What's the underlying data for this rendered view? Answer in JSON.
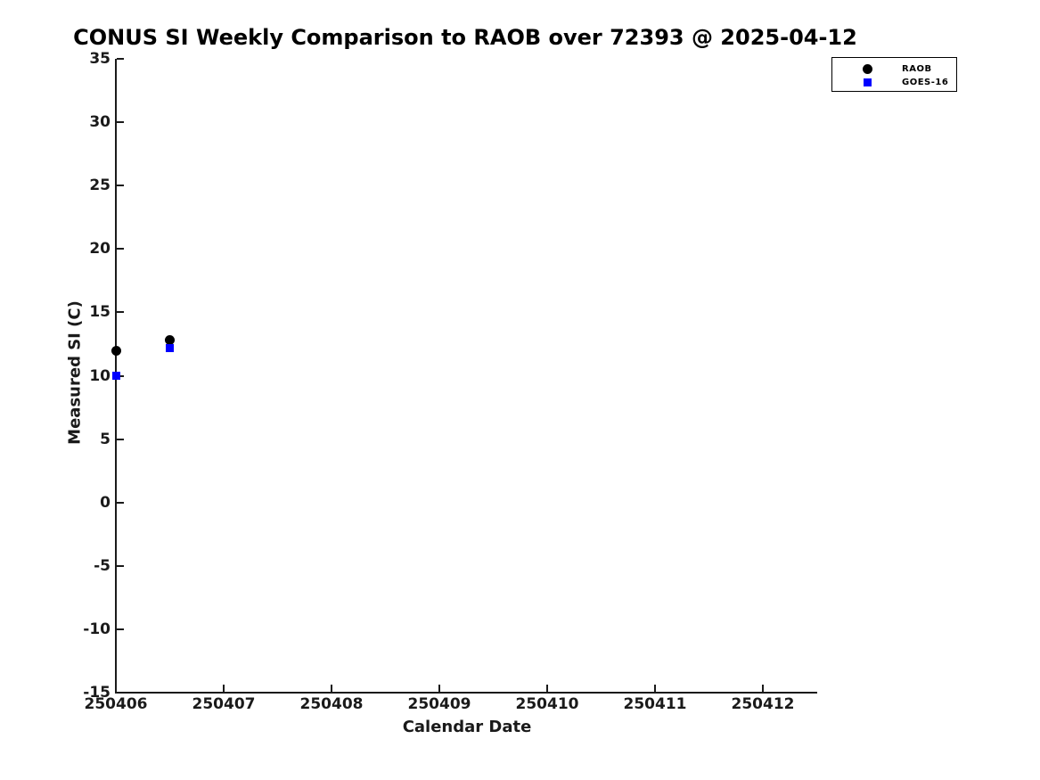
{
  "chart_data": {
    "type": "scatter",
    "title": "CONUS SI Weekly Comparison to RAOB over 72393 @ 2025-04-12",
    "xlabel": "Calendar Date",
    "ylabel": "Measured SI (C)",
    "xlim": [
      250406,
      250412.5
    ],
    "ylim": [
      -15,
      35
    ],
    "x_tick_labels": [
      "250406",
      "250407",
      "250408",
      "250409",
      "250410",
      "250411",
      "250412"
    ],
    "y_tick_labels": [
      "35",
      "30",
      "25",
      "20",
      "15",
      "10",
      "5",
      "0",
      "-5",
      "-10",
      "-15"
    ],
    "grid": false,
    "legend_position": "outside-top-right",
    "colors": {
      "raob": "#000000",
      "goes16": "#0000ff",
      "axis": "#1a1a1a"
    },
    "series": [
      {
        "name": "RAOB",
        "marker": "circle",
        "color": "#000000",
        "marker_size": 11,
        "points": [
          {
            "x": 250406.0,
            "y": 12.0
          },
          {
            "x": 250406.5,
            "y": 12.8
          }
        ]
      },
      {
        "name": "GOES-16",
        "marker": "square",
        "color": "#0000ff",
        "marker_size": 9,
        "points": [
          {
            "x": 250406.0,
            "y": 10.0
          },
          {
            "x": 250406.5,
            "y": 12.2
          }
        ]
      }
    ]
  }
}
